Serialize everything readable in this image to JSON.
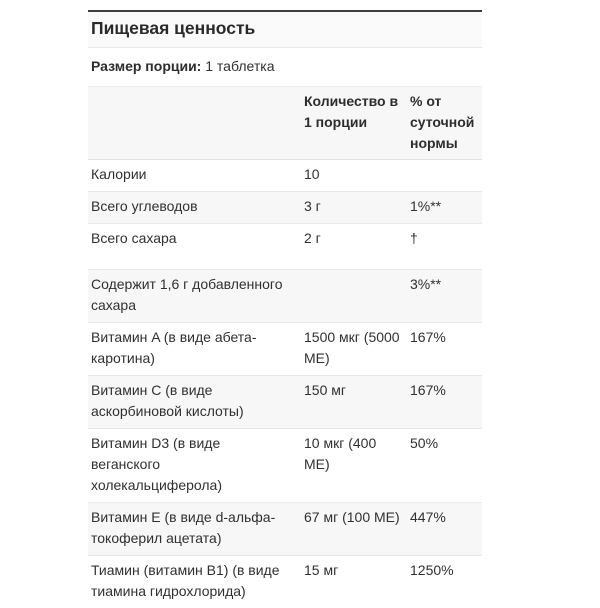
{
  "panel": {
    "title": "Пищевая ценность",
    "serving_label": "Размер порции:",
    "serving_value": "1 таблетка",
    "columns": {
      "amount": "Количество в 1 порции",
      "daily_value": "% от суточной нормы"
    }
  },
  "rows": [
    {
      "label": "Калории",
      "amount": "10",
      "dv": ""
    },
    {
      "label": "Всего углеводов",
      "amount": "3 г",
      "dv": "1%**"
    },
    {
      "label": "Всего сахара",
      "amount": "2 г",
      "dv": "†"
    },
    {
      "label": "Содержит 1,6 г добавленного сахара",
      "amount": "",
      "dv": "3%**"
    },
    {
      "label": "Витамин A (в виде абета-каротина)",
      "amount": "1500 мкг (5000 МЕ)",
      "dv": "167%"
    },
    {
      "label": "Витамин C (в виде аскорбиновой кислоты)",
      "amount": "150 мг",
      "dv": "167%"
    },
    {
      "label": "Витамин D3 (в виде веганского холекальциферола)",
      "amount": "10 мкг (400 МЕ)",
      "dv": "50%"
    },
    {
      "label": "Витамин E (в виде d-альфа-токоферил ацетата)",
      "amount": "67 мг (100 МЕ)",
      "dv": "447%"
    },
    {
      "label": "Тиамин (витамин B1) (в виде тиамина гидрохлорида)",
      "amount": "15 мг",
      "dv": "1250%"
    }
  ],
  "colors": {
    "title_top_border": "#3e3e3e",
    "row_divider": "#e8e8e8",
    "stripe_background": "#f7f7f7",
    "text": "#303030"
  }
}
